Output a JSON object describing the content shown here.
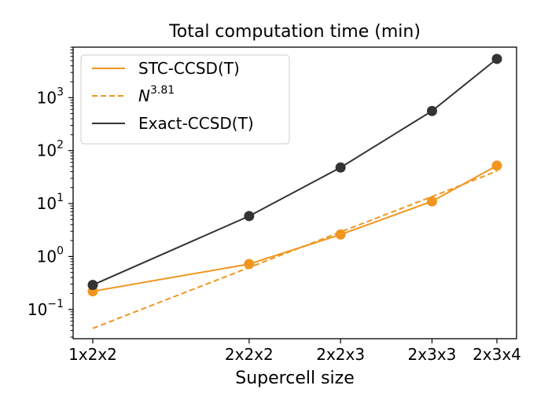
{
  "chart_data": {
    "type": "line",
    "title": "Total computation time (min)",
    "xlabel": "Supercell size",
    "ylabel": "",
    "yscale": "log",
    "ylim": [
      0.028,
      9000
    ],
    "categories": [
      "1x2x2",
      "2x2x2",
      "2x2x3",
      "2x3x3",
      "2x3x4"
    ],
    "x": [
      4,
      8,
      12,
      18,
      24
    ],
    "yticks": [
      {
        "value": 0.1,
        "base": "10",
        "exp": "−1"
      },
      {
        "value": 1,
        "base": "10",
        "exp": "0"
      },
      {
        "value": 10,
        "base": "10",
        "exp": "1"
      },
      {
        "value": 100,
        "base": "10",
        "exp": "2"
      },
      {
        "value": 1000,
        "base": "10",
        "exp": "3"
      }
    ],
    "series": [
      {
        "name": "STC-CCSD(T)",
        "color": "#f0961e",
        "style": "solid",
        "markers": true,
        "values": [
          0.22,
          0.72,
          2.6,
          11,
          52
        ]
      },
      {
        "name": "N",
        "name_sup": "3.81",
        "color": "#f0961e",
        "style": "dashed",
        "markers": false,
        "values": [
          0.044,
          0.62,
          2.9,
          13.5,
          41
        ]
      },
      {
        "name": "Exact-CCSD(T)",
        "color": "#333333",
        "style": "solid",
        "markers": true,
        "values": [
          0.29,
          5.8,
          48,
          560,
          5400
        ]
      }
    ],
    "legend": "top-left"
  }
}
